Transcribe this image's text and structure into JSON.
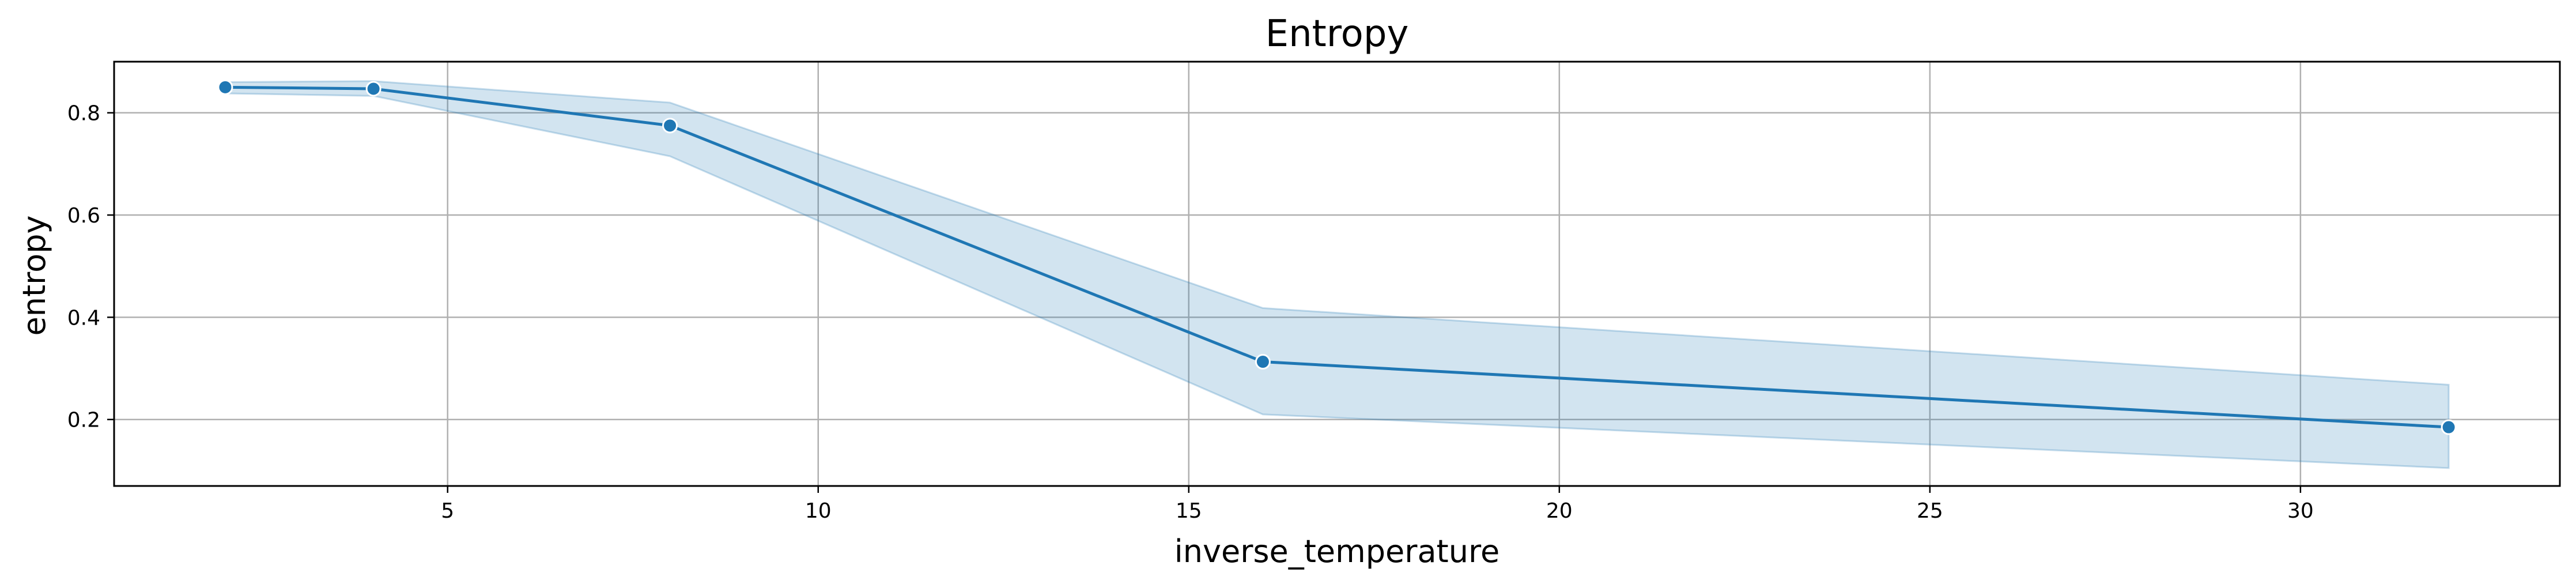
{
  "chart_data": {
    "type": "line",
    "title": "Entropy",
    "xlabel": "inverse_temperature",
    "ylabel": "entropy",
    "xlim": [
      0.5,
      33.5
    ],
    "ylim": [
      0.07,
      0.9
    ],
    "xticks": [
      5,
      10,
      15,
      20,
      25,
      30
    ],
    "yticks": [
      0.2,
      0.4,
      0.6,
      0.8
    ],
    "grid": true,
    "series": [
      {
        "x": [
          2,
          4,
          8,
          16,
          32
        ],
        "y": [
          0.85,
          0.847,
          0.775,
          0.313,
          0.185
        ],
        "ci_lower": [
          0.838,
          0.833,
          0.715,
          0.21,
          0.105
        ],
        "ci_upper": [
          0.86,
          0.862,
          0.82,
          0.418,
          0.268
        ]
      }
    ],
    "colors": {
      "line": "#1f77b4",
      "band": "#1f77b4",
      "grid": "#b0b0b0"
    }
  }
}
